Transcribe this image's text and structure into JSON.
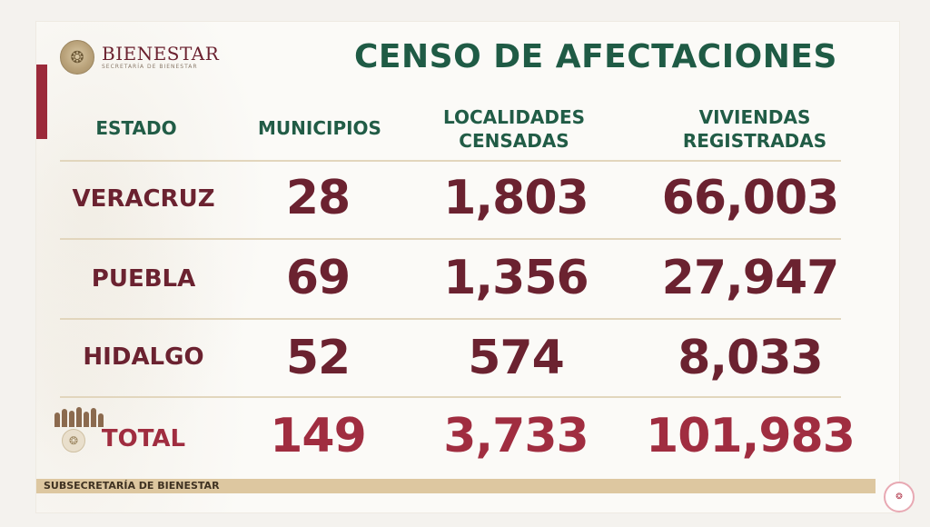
{
  "brand": {
    "name": "BIENESTAR",
    "subtitle": "SECRETARÍA DE BIENESTAR",
    "seal_icon": "mexico-seal-icon"
  },
  "title": "CENSO DE AFECTACIONES",
  "headers": {
    "estado": "ESTADO",
    "municipios": "MUNICIPIOS",
    "localidades_1": "LOCALIDADES",
    "localidades_2": "CENSADAS",
    "viviendas_1": "VIVIENDAS",
    "viviendas_2": "REGISTRADAS"
  },
  "rows": [
    {
      "estado": "VERACRUZ",
      "municipios": "28",
      "localidades": "1,803",
      "viviendas": "66,003"
    },
    {
      "estado": "PUEBLA",
      "municipios": "69",
      "localidades": "1,356",
      "viviendas": "27,947"
    },
    {
      "estado": "HIDALGO",
      "municipios": "52",
      "localidades": "574",
      "viviendas": "8,033"
    }
  ],
  "total": {
    "estado": "TOTAL",
    "municipios": "149",
    "localidades": "3,733",
    "viviendas": "101,983"
  },
  "footer": "SUBSECRETARÍA DE BIENESTAR",
  "corner_logo": {
    "icon": "gobierno-de-mexico-icon"
  },
  "colors": {
    "title_green": "#1f5b45",
    "value_maroon": "#6b2230",
    "total_red": "#a02d40",
    "accent_bar": "#9b2a3a",
    "footer_bar": "#ddc7a0"
  }
}
